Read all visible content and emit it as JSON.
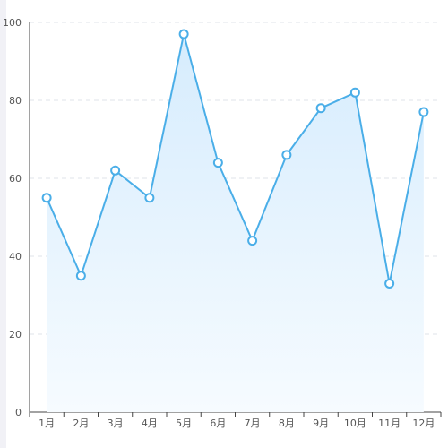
{
  "chart_data": {
    "type": "area",
    "categories": [
      "1月",
      "2月",
      "3月",
      "4月",
      "5月",
      "6月",
      "7月",
      "8月",
      "9月",
      "10月",
      "11月",
      "12月"
    ],
    "series": [
      {
        "values": [
          55,
          35,
          62,
          55,
          97,
          64,
          44,
          66,
          78,
          82,
          33,
          77
        ]
      }
    ],
    "title": "",
    "xlabel": "",
    "ylabel": "",
    "ylim": [
      0,
      100
    ],
    "yticks": [
      0,
      20,
      40,
      60,
      80,
      100
    ],
    "grid": true,
    "legend": "none",
    "colors": {
      "line": "#4aaee8",
      "area_top": "#d6ecfd",
      "area_bottom": "#f6fbff",
      "marker_fill": "#ffffff",
      "grid": "#dfe3e8",
      "axis": "#444444"
    }
  }
}
